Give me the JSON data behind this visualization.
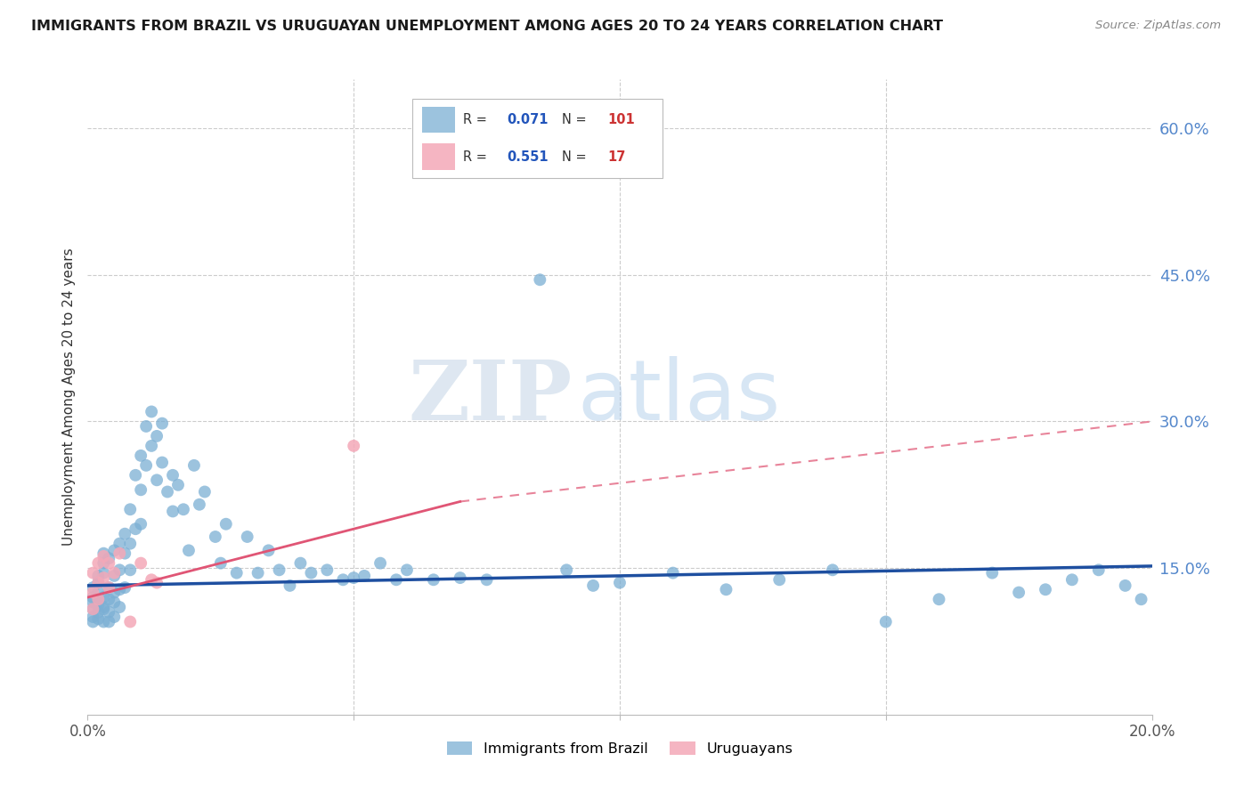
{
  "title": "IMMIGRANTS FROM BRAZIL VS URUGUAYAN UNEMPLOYMENT AMONG AGES 20 TO 24 YEARS CORRELATION CHART",
  "source": "Source: ZipAtlas.com",
  "ylabel": "Unemployment Among Ages 20 to 24 years",
  "xlim": [
    0.0,
    0.2
  ],
  "ylim": [
    0.0,
    0.65
  ],
  "xticks": [
    0.0,
    0.05,
    0.1,
    0.15,
    0.2
  ],
  "xticklabels": [
    "0.0%",
    "",
    "",
    "",
    "20.0%"
  ],
  "yticks_right": [
    0.15,
    0.3,
    0.45,
    0.6
  ],
  "ytick_right_labels": [
    "15.0%",
    "30.0%",
    "45.0%",
    "60.0%"
  ],
  "grid_color": "#cccccc",
  "watermark_zip": "ZIP",
  "watermark_atlas": "atlas",
  "blue_color": "#7bafd4",
  "pink_color": "#f4a8b8",
  "blue_trend_color": "#1e4fa0",
  "pink_trend_solid_color": "#e05575",
  "pink_trend_dash_color": "#e8849a",
  "blue_scatter_x": [
    0.001,
    0.001,
    0.001,
    0.001,
    0.001,
    0.001,
    0.002,
    0.002,
    0.002,
    0.002,
    0.002,
    0.002,
    0.002,
    0.003,
    0.003,
    0.003,
    0.003,
    0.003,
    0.003,
    0.003,
    0.004,
    0.004,
    0.004,
    0.004,
    0.004,
    0.005,
    0.005,
    0.005,
    0.005,
    0.005,
    0.006,
    0.006,
    0.006,
    0.006,
    0.007,
    0.007,
    0.007,
    0.008,
    0.008,
    0.008,
    0.009,
    0.009,
    0.01,
    0.01,
    0.01,
    0.011,
    0.011,
    0.012,
    0.012,
    0.013,
    0.013,
    0.014,
    0.014,
    0.015,
    0.016,
    0.016,
    0.017,
    0.018,
    0.019,
    0.02,
    0.021,
    0.022,
    0.024,
    0.025,
    0.026,
    0.028,
    0.03,
    0.032,
    0.034,
    0.036,
    0.038,
    0.04,
    0.042,
    0.045,
    0.048,
    0.05,
    0.052,
    0.055,
    0.058,
    0.06,
    0.065,
    0.07,
    0.075,
    0.08,
    0.085,
    0.09,
    0.095,
    0.1,
    0.11,
    0.12,
    0.13,
    0.14,
    0.15,
    0.16,
    0.17,
    0.175,
    0.18,
    0.185,
    0.19,
    0.195,
    0.198
  ],
  "blue_scatter_y": [
    0.13,
    0.115,
    0.12,
    0.1,
    0.108,
    0.095,
    0.125,
    0.112,
    0.118,
    0.105,
    0.098,
    0.135,
    0.142,
    0.11,
    0.155,
    0.165,
    0.12,
    0.108,
    0.145,
    0.095,
    0.16,
    0.13,
    0.118,
    0.105,
    0.095,
    0.168,
    0.125,
    0.142,
    0.115,
    0.1,
    0.175,
    0.148,
    0.128,
    0.11,
    0.185,
    0.165,
    0.13,
    0.21,
    0.175,
    0.148,
    0.245,
    0.19,
    0.265,
    0.23,
    0.195,
    0.295,
    0.255,
    0.31,
    0.275,
    0.285,
    0.24,
    0.298,
    0.258,
    0.228,
    0.245,
    0.208,
    0.235,
    0.21,
    0.168,
    0.255,
    0.215,
    0.228,
    0.182,
    0.155,
    0.195,
    0.145,
    0.182,
    0.145,
    0.168,
    0.148,
    0.132,
    0.155,
    0.145,
    0.148,
    0.138,
    0.14,
    0.142,
    0.155,
    0.138,
    0.148,
    0.138,
    0.14,
    0.138,
    0.565,
    0.445,
    0.148,
    0.132,
    0.135,
    0.145,
    0.128,
    0.138,
    0.148,
    0.095,
    0.118,
    0.145,
    0.125,
    0.128,
    0.138,
    0.148,
    0.132,
    0.118
  ],
  "pink_scatter_x": [
    0.001,
    0.001,
    0.001,
    0.002,
    0.002,
    0.002,
    0.003,
    0.003,
    0.004,
    0.004,
    0.005,
    0.006,
    0.008,
    0.01,
    0.012,
    0.013,
    0.05
  ],
  "pink_scatter_y": [
    0.145,
    0.125,
    0.108,
    0.155,
    0.135,
    0.118,
    0.162,
    0.14,
    0.155,
    0.13,
    0.145,
    0.165,
    0.095,
    0.155,
    0.138,
    0.135,
    0.275
  ],
  "blue_trend_x0": 0.0,
  "blue_trend_x1": 0.2,
  "blue_trend_y0": 0.132,
  "blue_trend_y1": 0.152,
  "pink_trend_solid_x0": 0.0,
  "pink_trend_solid_x1": 0.07,
  "pink_trend_solid_y0": 0.12,
  "pink_trend_solid_y1": 0.218,
  "pink_trend_dash_x0": 0.07,
  "pink_trend_dash_x1": 0.2,
  "pink_trend_dash_y0": 0.218,
  "pink_trend_dash_y1": 0.3
}
